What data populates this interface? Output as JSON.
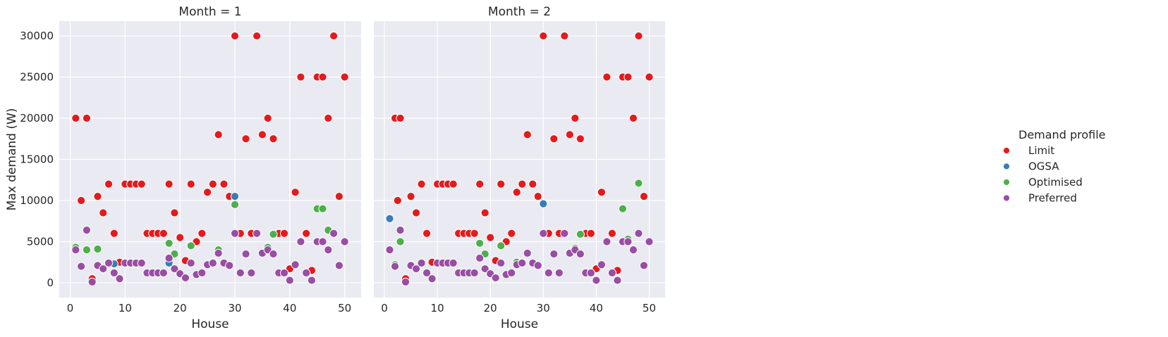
{
  "chart_data": {
    "type": "scatter",
    "xlabel": "House",
    "ylabel": "Max demand (W)",
    "xlim": [
      -2,
      53
    ],
    "ylim": [
      -1800,
      31800
    ],
    "xticks": [
      0,
      10,
      20,
      30,
      40,
      50
    ],
    "yticks": [
      0,
      5000,
      10000,
      15000,
      20000,
      25000,
      30000
    ],
    "grid": true,
    "legend": {
      "title": "Demand profile",
      "placement": "right",
      "entries": [
        {
          "name": "Limit",
          "color": "#e41a1c"
        },
        {
          "name": "OGSA",
          "color": "#377eb8"
        },
        {
          "name": "Optimised",
          "color": "#4daf4a"
        },
        {
          "name": "Preferred",
          "color": "#984ea3"
        }
      ]
    },
    "panels": [
      {
        "title": "Month = 1",
        "series": [
          {
            "name": "Limit",
            "points": [
              [
                1,
                20000
              ],
              [
                2,
                10000
              ],
              [
                3,
                20000
              ],
              [
                4,
                500
              ],
              [
                5,
                10500
              ],
              [
                6,
                8500
              ],
              [
                7,
                12000
              ],
              [
                8,
                6000
              ],
              [
                9,
                2500
              ],
              [
                10,
                12000
              ],
              [
                11,
                12000
              ],
              [
                12,
                12000
              ],
              [
                13,
                12000
              ],
              [
                14,
                6000
              ],
              [
                15,
                6000
              ],
              [
                16,
                6000
              ],
              [
                17,
                6000
              ],
              [
                18,
                12000
              ],
              [
                19,
                8500
              ],
              [
                20,
                5500
              ],
              [
                21,
                2700
              ],
              [
                22,
                12000
              ],
              [
                23,
                5000
              ],
              [
                24,
                6000
              ],
              [
                25,
                11000
              ],
              [
                26,
                12000
              ],
              [
                27,
                18000
              ],
              [
                28,
                12000
              ],
              [
                29,
                10500
              ],
              [
                30,
                30000
              ],
              [
                31,
                6000
              ],
              [
                32,
                17500
              ],
              [
                33,
                6000
              ],
              [
                34,
                30000
              ],
              [
                35,
                18000
              ],
              [
                36,
                20000
              ],
              [
                37,
                17500
              ],
              [
                38,
                6000
              ],
              [
                39,
                6000
              ],
              [
                40,
                1700
              ],
              [
                41,
                11000
              ],
              [
                42,
                25000
              ],
              [
                43,
                6000
              ],
              [
                44,
                1500
              ],
              [
                45,
                25000
              ],
              [
                46,
                25000
              ],
              [
                47,
                20000
              ],
              [
                48,
                30000
              ],
              [
                49,
                10500
              ],
              [
                50,
                25000
              ]
            ]
          },
          {
            "name": "OGSA",
            "points": [
              [
                1,
                4200
              ],
              [
                8,
                2300
              ],
              [
                18,
                2400
              ],
              [
                30,
                10500
              ]
            ]
          },
          {
            "name": "Optimised",
            "points": [
              [
                1,
                4300
              ],
              [
                3,
                4000
              ],
              [
                5,
                4100
              ],
              [
                18,
                4800
              ],
              [
                19,
                3500
              ],
              [
                22,
                4500
              ],
              [
                26,
                2500
              ],
              [
                27,
                4000
              ],
              [
                30,
                9500
              ],
              [
                36,
                4300
              ],
              [
                37,
                5900
              ],
              [
                45,
                9000
              ],
              [
                46,
                9000
              ],
              [
                47,
                6400
              ]
            ]
          },
          {
            "name": "Preferred",
            "points": [
              [
                1,
                4000
              ],
              [
                2,
                2000
              ],
              [
                3,
                6400
              ],
              [
                4,
                100
              ],
              [
                5,
                2100
              ],
              [
                6,
                1700
              ],
              [
                7,
                2400
              ],
              [
                8,
                1200
              ],
              [
                9,
                500
              ],
              [
                10,
                2400
              ],
              [
                11,
                2400
              ],
              [
                12,
                2400
              ],
              [
                13,
                2400
              ],
              [
                14,
                1200
              ],
              [
                15,
                1200
              ],
              [
                16,
                1200
              ],
              [
                17,
                1200
              ],
              [
                18,
                3000
              ],
              [
                19,
                1700
              ],
              [
                20,
                1100
              ],
              [
                21,
                600
              ],
              [
                22,
                2400
              ],
              [
                23,
                1000
              ],
              [
                24,
                1200
              ],
              [
                25,
                2200
              ],
              [
                26,
                2400
              ],
              [
                27,
                3600
              ],
              [
                28,
                2400
              ],
              [
                29,
                2100
              ],
              [
                30,
                6000
              ],
              [
                31,
                1200
              ],
              [
                32,
                3500
              ],
              [
                33,
                1200
              ],
              [
                34,
                6000
              ],
              [
                35,
                3600
              ],
              [
                36,
                4000
              ],
              [
                37,
                3500
              ],
              [
                38,
                1200
              ],
              [
                39,
                1200
              ],
              [
                40,
                300
              ],
              [
                41,
                2200
              ],
              [
                42,
                5000
              ],
              [
                43,
                1200
              ],
              [
                44,
                300
              ],
              [
                45,
                5000
              ],
              [
                46,
                5000
              ],
              [
                47,
                4000
              ],
              [
                48,
                6000
              ],
              [
                49,
                2100
              ],
              [
                50,
                5000
              ]
            ]
          }
        ]
      },
      {
        "title": "Month = 2",
        "series": [
          {
            "name": "Limit",
            "points": [
              [
                2,
                20000
              ],
              [
                2.5,
                10000
              ],
              [
                3,
                20000
              ],
              [
                4,
                500
              ],
              [
                5,
                10500
              ],
              [
                6,
                8500
              ],
              [
                7,
                12000
              ],
              [
                8,
                6000
              ],
              [
                9,
                2500
              ],
              [
                10,
                12000
              ],
              [
                11,
                12000
              ],
              [
                12,
                12000
              ],
              [
                13,
                12000
              ],
              [
                14,
                6000
              ],
              [
                15,
                6000
              ],
              [
                16,
                6000
              ],
              [
                17,
                6000
              ],
              [
                18,
                12000
              ],
              [
                19,
                8500
              ],
              [
                20,
                5500
              ],
              [
                21,
                2700
              ],
              [
                22,
                12000
              ],
              [
                23,
                5000
              ],
              [
                24,
                6000
              ],
              [
                25,
                11000
              ],
              [
                26,
                12000
              ],
              [
                27,
                18000
              ],
              [
                28,
                12000
              ],
              [
                29,
                10500
              ],
              [
                30,
                30000
              ],
              [
                31,
                6000
              ],
              [
                32,
                17500
              ],
              [
                33,
                6000
              ],
              [
                34,
                30000
              ],
              [
                35,
                18000
              ],
              [
                36,
                20000
              ],
              [
                37,
                17500
              ],
              [
                38,
                6000
              ],
              [
                39,
                6000
              ],
              [
                40,
                1700
              ],
              [
                41,
                11000
              ],
              [
                42,
                25000
              ],
              [
                43,
                6000
              ],
              [
                44,
                1500
              ],
              [
                45,
                25000
              ],
              [
                46,
                25000
              ],
              [
                47,
                20000
              ],
              [
                48,
                30000
              ],
              [
                49,
                10500
              ],
              [
                50,
                25000
              ]
            ]
          },
          {
            "name": "OGSA",
            "points": [
              [
                1,
                7800
              ],
              [
                30,
                9600
              ]
            ]
          },
          {
            "name": "Optimised",
            "points": [
              [
                2,
                2200
              ],
              [
                3,
                5000
              ],
              [
                18,
                4800
              ],
              [
                19,
                3500
              ],
              [
                22,
                4500
              ],
              [
                25,
                2500
              ],
              [
                26,
                2500
              ],
              [
                36,
                4200
              ],
              [
                37,
                5900
              ],
              [
                45,
                9000
              ],
              [
                46,
                5300
              ],
              [
                48,
                12100
              ]
            ]
          },
          {
            "name": "Preferred",
            "points": [
              [
                1,
                4000
              ],
              [
                2,
                2000
              ],
              [
                3,
                6400
              ],
              [
                4,
                100
              ],
              [
                5,
                2100
              ],
              [
                6,
                1700
              ],
              [
                7,
                2400
              ],
              [
                8,
                1200
              ],
              [
                9,
                500
              ],
              [
                10,
                2400
              ],
              [
                11,
                2400
              ],
              [
                12,
                2400
              ],
              [
                13,
                2400
              ],
              [
                14,
                1200
              ],
              [
                15,
                1200
              ],
              [
                16,
                1200
              ],
              [
                17,
                1200
              ],
              [
                18,
                3000
              ],
              [
                19,
                1700
              ],
              [
                20,
                1100
              ],
              [
                21,
                600
              ],
              [
                22,
                2400
              ],
              [
                23,
                1000
              ],
              [
                24,
                1200
              ],
              [
                25,
                2200
              ],
              [
                26,
                2400
              ],
              [
                27,
                3600
              ],
              [
                28,
                2400
              ],
              [
                29,
                2100
              ],
              [
                30,
                6000
              ],
              [
                31,
                1200
              ],
              [
                32,
                3500
              ],
              [
                33,
                1200
              ],
              [
                34,
                6000
              ],
              [
                35,
                3600
              ],
              [
                36,
                4000
              ],
              [
                37,
                3500
              ],
              [
                38,
                1200
              ],
              [
                39,
                1200
              ],
              [
                40,
                300
              ],
              [
                41,
                2200
              ],
              [
                42,
                5000
              ],
              [
                43,
                1200
              ],
              [
                44,
                300
              ],
              [
                45,
                5000
              ],
              [
                46,
                5000
              ],
              [
                47,
                4000
              ],
              [
                48,
                6000
              ],
              [
                49,
                2100
              ],
              [
                50,
                5000
              ]
            ]
          }
        ]
      }
    ]
  }
}
